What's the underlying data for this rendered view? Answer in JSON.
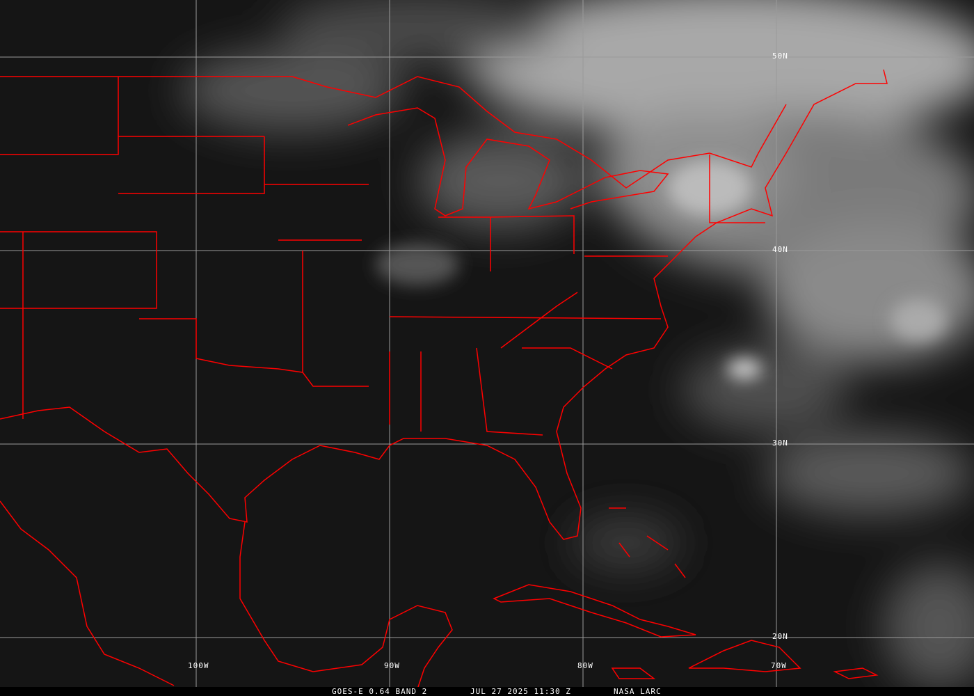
{
  "map": {
    "satellite": "GOES-E",
    "border_color": "#ff0000",
    "grid_color": "#9a9a9a",
    "latitude_labels": [
      "50N",
      "40N",
      "30N",
      "20N"
    ],
    "longitude_labels": [
      "100W",
      "90W",
      "80W",
      "70W"
    ]
  },
  "caption": {
    "product": "GOES-E 0.64 BAND 2",
    "datetime": "JUL 27 2025 11:30 Z",
    "source": "NASA LARC"
  }
}
